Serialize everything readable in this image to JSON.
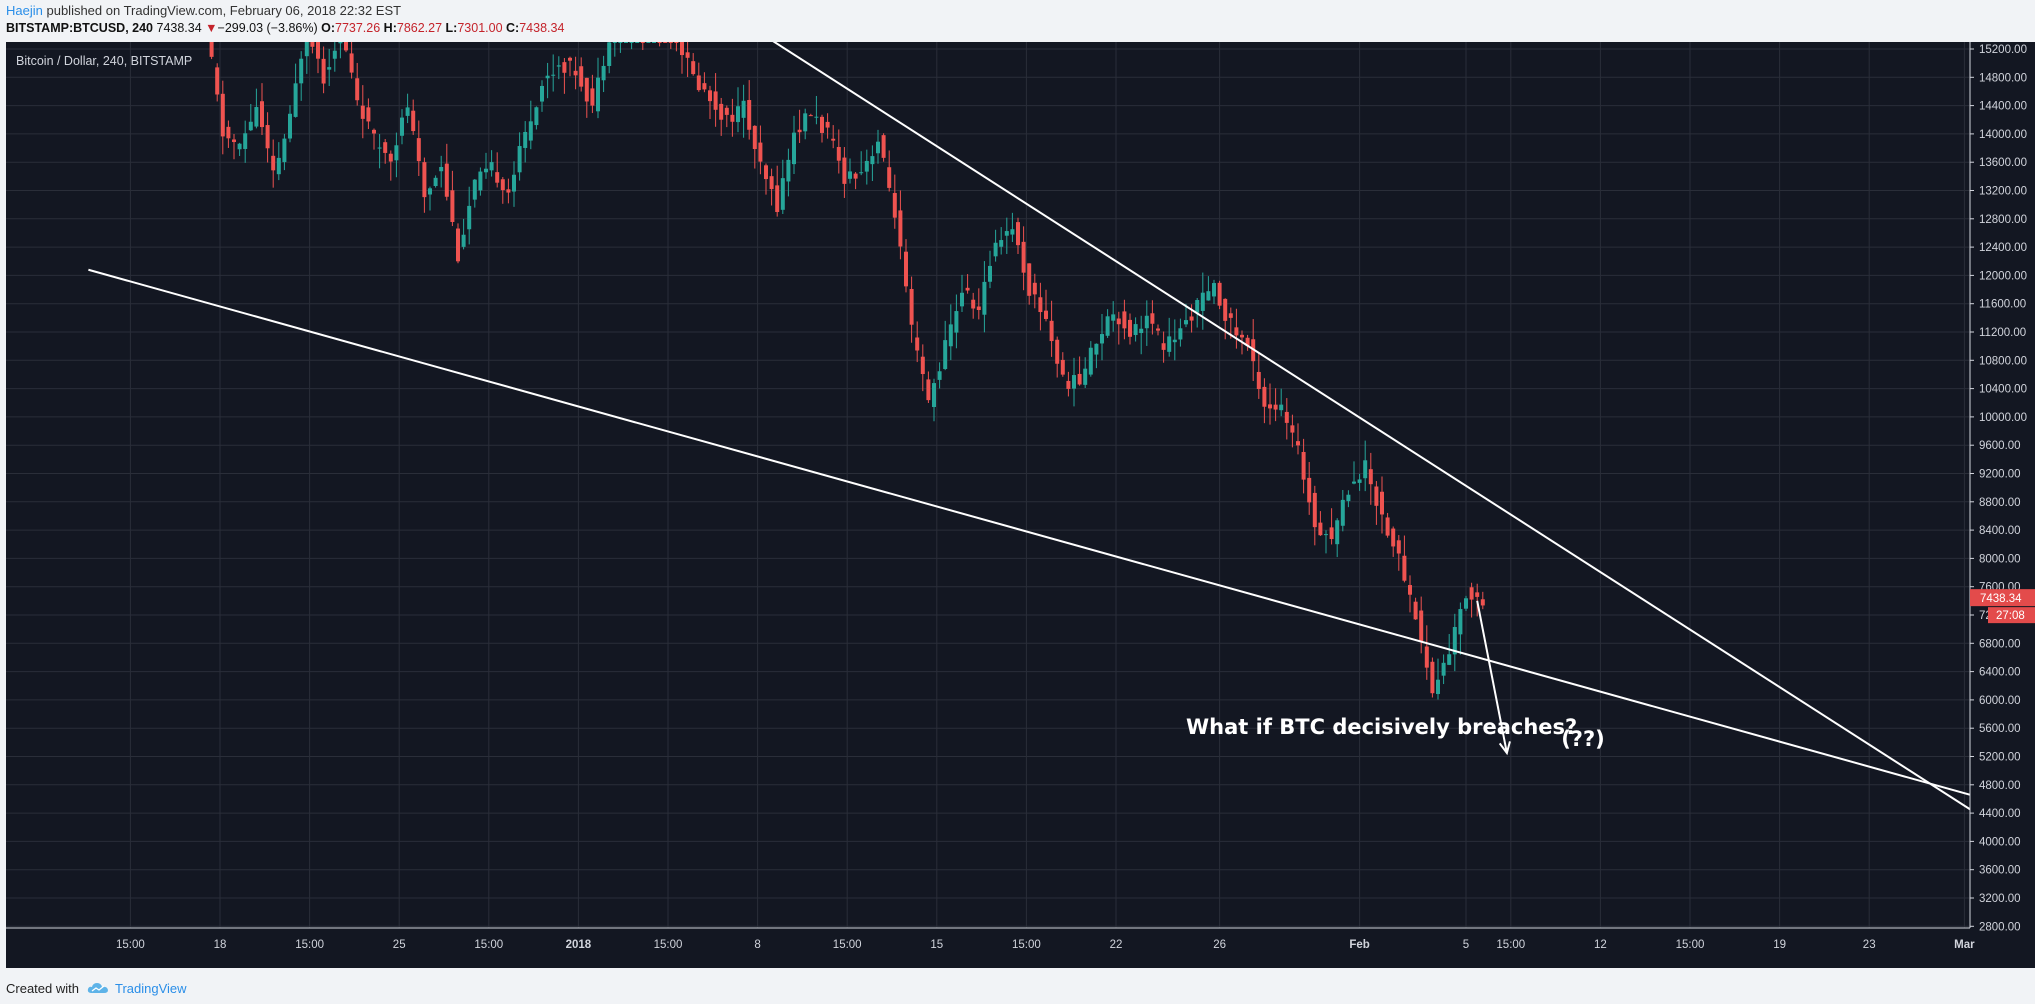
{
  "header": {
    "author": "Haejin",
    "published_text": "published on TradingView.com, February 06, 2018 22:32 EST",
    "symbol": "BITSTAMP:BTCUSD, 240",
    "last_price": "7438.34",
    "change_arrow": "▼",
    "change": "−299.03 (−3.86%)",
    "open_label": "O:",
    "open": "7737.26",
    "high_label": "H:",
    "high": "7862.27",
    "low_label": "L:",
    "low": "7301.00",
    "close_label": "C:",
    "close": "7438.34"
  },
  "chart_legend": "Bitcoin / Dollar, 240, BITSTAMP",
  "footer": {
    "created_with": "Created with",
    "brand": "TradingView"
  },
  "colors": {
    "background": "#131722",
    "grid": "#2a2e39",
    "up": "#26a69a",
    "down": "#ef5350",
    "annotation": "#ffffff",
    "price_tag": "#e34b4b"
  },
  "chart_data": {
    "type": "candlestick",
    "title": "Bitcoin / Dollar, 240, BITSTAMP",
    "ylim": [
      2600,
      15350
    ],
    "y_ticks": [
      "15200.00",
      "14800.00",
      "14400.00",
      "14000.00",
      "13600.00",
      "13200.00",
      "12800.00",
      "12400.00",
      "12000.00",
      "11600.00",
      "11200.00",
      "10800.00",
      "10400.00",
      "10000.00",
      "9600.00",
      "9200.00",
      "8800.00",
      "8400.00",
      "8000.00",
      "7600.00",
      "7200.00",
      "6800.00",
      "6400.00",
      "6000.00",
      "5600.00",
      "5200.00",
      "4800.00",
      "4400.00",
      "4000.00",
      "3600.00",
      "3200.00",
      "2800.00"
    ],
    "x_ticks": [
      "15:00",
      "18",
      "15:00",
      "25",
      "15:00",
      "2018",
      "15:00",
      "8",
      "15:00",
      "15",
      "15:00",
      "22",
      "26",
      "Feb",
      "5",
      "15:00",
      "12",
      "15:00",
      "19",
      "23",
      "Mar",
      "5"
    ],
    "x_tick_index": [
      -13.5,
      2.5,
      18.5,
      34.5,
      50.5,
      66.5,
      82.5,
      98.5,
      114.5,
      130.5,
      146.5,
      162.5,
      181,
      206,
      225,
      233,
      249,
      265,
      281,
      297,
      314,
      333
    ],
    "last_price_tag": "7438.34",
    "countdown_tag": "27:08",
    "trendlines": [
      {
        "name": "upper-descending-resistance",
        "points": [
          [
            100.5,
            15350
          ],
          [
            320,
            4200
          ]
        ]
      },
      {
        "name": "lower-descending-support",
        "points": [
          [
            -21,
            12080
          ],
          [
            329,
            4350
          ]
        ]
      },
      {
        "name": "projection-arrow",
        "points": [
          [
            227,
            7400
          ],
          [
            232.3,
            5250
          ]
        ]
      }
    ],
    "annotations": [
      {
        "text": "What if BTC decisively breaches?",
        "x": 175,
        "y": 5520
      },
      {
        "text": "(??)",
        "x": 242,
        "y": 5350
      }
    ],
    "candle_anchors": {
      "x": [
        0,
        3,
        6,
        9,
        12,
        15,
        18,
        21,
        24,
        27,
        30,
        33,
        36,
        39,
        42,
        45,
        48,
        51,
        54,
        57,
        60,
        63,
        66,
        69,
        72,
        75,
        78,
        81,
        84,
        87,
        90,
        93,
        96,
        99,
        102,
        105,
        108,
        111,
        114,
        117,
        120,
        123,
        126,
        129,
        132,
        135,
        138,
        141,
        144,
        147,
        150,
        153,
        156,
        159,
        162,
        165,
        168,
        171,
        174,
        177,
        180,
        183,
        186,
        189,
        192,
        195,
        198,
        201,
        204,
        207,
        210,
        213,
        216,
        219,
        222,
        225,
        228
      ],
      "close": [
        15500,
        14000,
        13800,
        14400,
        13400,
        14200,
        15600,
        14800,
        15500,
        14500,
        13900,
        13700,
        14400,
        13100,
        13600,
        12300,
        13300,
        13500,
        13200,
        14000,
        14700,
        15000,
        14900,
        14400,
        15400,
        15500,
        15500,
        15500,
        15400,
        14800,
        14500,
        14200,
        14400,
        13500,
        13000,
        14000,
        14300,
        14000,
        13400,
        13500,
        13900,
        12900,
        11200,
        10200,
        11000,
        11800,
        11500,
        12500,
        12700,
        11800,
        11400,
        10500,
        10500,
        11100,
        11500,
        11200,
        11400,
        11000,
        11200,
        11600,
        11800,
        11300,
        11000,
        10200,
        10100,
        9500,
        8500,
        8300,
        9000,
        9300,
        8600,
        8000,
        7200,
        6100,
        6700,
        7500,
        7440
      ]
    }
  }
}
